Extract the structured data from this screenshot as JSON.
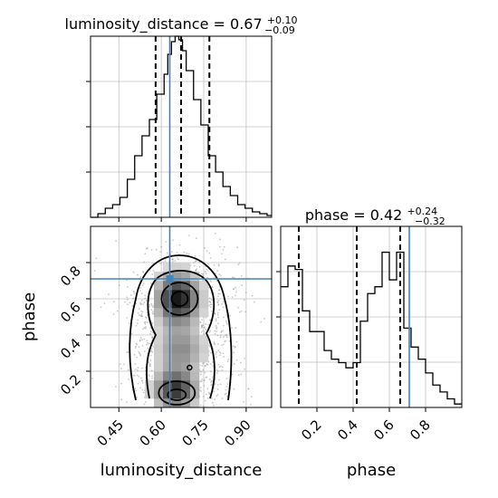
{
  "chart_data": {
    "type": "corner",
    "parameters": [
      "luminosity_distance",
      "phase"
    ],
    "truths": {
      "luminosity_distance": 0.63,
      "phase": 0.71
    },
    "panels": [
      {
        "id": "hist-luminosity_distance",
        "type": "histogram",
        "title_label": "luminosity_distance",
        "title_value": "= 0.67",
        "title_plus": "+0.10",
        "title_minus": "−0.09",
        "xlim": [
          0.35,
          0.99
        ],
        "ylim": [
          0,
          1.0
        ],
        "bin_edges": [
          0.35,
          0.376,
          0.402,
          0.428,
          0.454,
          0.48,
          0.506,
          0.532,
          0.558,
          0.584,
          0.61,
          0.623,
          0.636,
          0.649,
          0.662,
          0.675,
          0.688,
          0.714,
          0.74,
          0.766,
          0.792,
          0.818,
          0.844,
          0.87,
          0.896,
          0.922,
          0.948,
          0.974,
          0.99
        ],
        "counts": [
          0.0,
          0.02,
          0.05,
          0.07,
          0.11,
          0.21,
          0.34,
          0.45,
          0.54,
          0.68,
          0.79,
          0.9,
          0.97,
          1.0,
          0.98,
          0.92,
          0.81,
          0.65,
          0.51,
          0.34,
          0.25,
          0.17,
          0.12,
          0.07,
          0.05,
          0.03,
          0.02,
          0.01
        ],
        "quantiles": [
          0.58,
          0.67,
          0.77
        ],
        "truth": 0.63
      },
      {
        "id": "scatter-phase-vs-luminosity_distance",
        "type": "2d-histogram",
        "xlabel": "luminosity_distance",
        "ylabel": "phase",
        "xlim": [
          0.35,
          0.99
        ],
        "ylim": [
          0.0,
          1.0
        ],
        "xticks": [
          "0.45",
          "0.60",
          "0.75",
          "0.90"
        ],
        "xtick_values": [
          0.45,
          0.6,
          0.75,
          0.9
        ],
        "yticks": [
          "0.2",
          "0.4",
          "0.6",
          "0.8"
        ],
        "ytick_values": [
          0.2,
          0.4,
          0.6,
          0.8
        ],
        "truth": {
          "x": 0.63,
          "y": 0.71
        },
        "density_peaks": [
          {
            "x": 0.66,
            "y": 0.6,
            "weight": 1.0
          },
          {
            "x": 0.65,
            "y": 0.08,
            "weight": 0.8
          },
          {
            "x": 0.67,
            "y": 0.3,
            "weight": 0.45
          }
        ]
      },
      {
        "id": "hist-phase",
        "type": "histogram",
        "title_label": "phase",
        "title_value": "= 0.42",
        "title_plus": "+0.24",
        "title_minus": "−0.32",
        "xlabel": "phase",
        "xlim": [
          0.0,
          1.0
        ],
        "ylim": [
          0,
          1.05
        ],
        "xticks": [
          "0.2",
          "0.4",
          "0.6",
          "0.8"
        ],
        "xtick_values": [
          0.2,
          0.4,
          0.6,
          0.8
        ],
        "bin_edges": [
          0.0,
          0.04,
          0.08,
          0.12,
          0.16,
          0.2,
          0.24,
          0.28,
          0.32,
          0.36,
          0.4,
          0.44,
          0.48,
          0.52,
          0.56,
          0.6,
          0.64,
          0.68,
          0.72,
          0.76,
          0.8,
          0.84,
          0.88,
          0.92,
          0.96,
          1.0
        ],
        "counts": [
          0.7,
          0.82,
          0.8,
          0.56,
          0.44,
          0.44,
          0.33,
          0.28,
          0.26,
          0.23,
          0.26,
          0.5,
          0.66,
          0.7,
          0.9,
          0.74,
          0.9,
          0.46,
          0.35,
          0.28,
          0.2,
          0.13,
          0.09,
          0.05,
          0.02
        ],
        "quantiles": [
          0.1,
          0.42,
          0.66
        ],
        "truth": 0.71
      }
    ],
    "colors": {
      "truth": "#4682b4",
      "hist": "#000000",
      "density": "#000000",
      "grid": "#c0c0c0"
    }
  }
}
